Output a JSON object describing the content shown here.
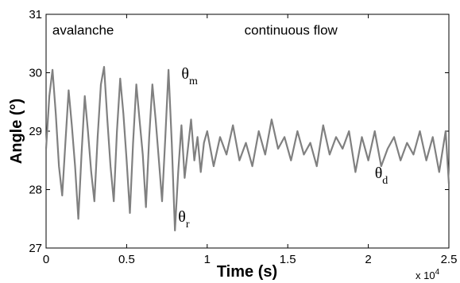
{
  "chart_data": {
    "type": "line",
    "xlabel": "Time (s)",
    "ylabel": "Angle  (°)",
    "x_multiplier": "x 10",
    "x_multiplier_exp": "4",
    "xlim": [
      0,
      2.5
    ],
    "ylim": [
      27,
      31
    ],
    "xticks": [
      0,
      0.5,
      1,
      1.5,
      2,
      2.5
    ],
    "xtick_labels": [
      "0",
      "0.5",
      "1",
      "1.5",
      "2",
      "2.5"
    ],
    "yticks": [
      27,
      28,
      29,
      30,
      31
    ],
    "ytick_labels": [
      "27",
      "28",
      "29",
      "30",
      "31"
    ],
    "grid": false,
    "line_color": "#808080",
    "annotations": [
      {
        "text": "avalanche",
        "x": 0.23,
        "y": 30.65
      },
      {
        "text": "continuous flow",
        "x": 1.52,
        "y": 30.65
      }
    ],
    "symbol_labels": [
      {
        "symbol": "θ",
        "subscript": "m",
        "x": 0.84,
        "y": 29.9
      },
      {
        "symbol": "θ",
        "subscript": "r",
        "x": 0.82,
        "y": 27.45
      },
      {
        "symbol": "θ",
        "subscript": "d",
        "x": 2.04,
        "y": 28.2
      }
    ],
    "series": [
      {
        "x": [
          0,
          0.02,
          0.04,
          0.06,
          0.08,
          0.1,
          0.12,
          0.14,
          0.16,
          0.18,
          0.2,
          0.22,
          0.24,
          0.26,
          0.28,
          0.3,
          0.32,
          0.34,
          0.36,
          0.38,
          0.4,
          0.42,
          0.44,
          0.46,
          0.48,
          0.5,
          0.52,
          0.54,
          0.56,
          0.58,
          0.6,
          0.62,
          0.64,
          0.66,
          0.68,
          0.7,
          0.72,
          0.74,
          0.76,
          0.78,
          0.8,
          0.82,
          0.84,
          0.86,
          0.88,
          0.9,
          0.92,
          0.94,
          0.96,
          0.98,
          1.0,
          1.04,
          1.08,
          1.12,
          1.16,
          1.2,
          1.24,
          1.28,
          1.32,
          1.36,
          1.4,
          1.44,
          1.48,
          1.52,
          1.56,
          1.6,
          1.64,
          1.68,
          1.72,
          1.76,
          1.8,
          1.84,
          1.88,
          1.92,
          1.96,
          2.0,
          2.04,
          2.08,
          2.12,
          2.16,
          2.2,
          2.24,
          2.28,
          2.32,
          2.36,
          2.4,
          2.44,
          2.48,
          2.5
        ],
        "y": [
          28.7,
          29.6,
          30.05,
          29.3,
          28.4,
          27.9,
          28.8,
          29.7,
          29.1,
          28.4,
          27.5,
          28.6,
          29.6,
          29.0,
          28.3,
          27.8,
          28.9,
          29.8,
          30.1,
          29.2,
          28.4,
          27.8,
          29.0,
          29.9,
          29.3,
          28.5,
          27.6,
          28.8,
          29.8,
          29.2,
          28.6,
          27.7,
          28.9,
          29.8,
          29.2,
          28.5,
          27.8,
          28.9,
          30.05,
          28.8,
          27.3,
          28.3,
          29.1,
          28.2,
          28.7,
          29.2,
          28.5,
          28.9,
          28.3,
          28.8,
          29.0,
          28.4,
          28.9,
          28.6,
          29.1,
          28.5,
          28.8,
          28.4,
          29.0,
          28.6,
          29.2,
          28.7,
          28.9,
          28.5,
          29.0,
          28.6,
          28.8,
          28.4,
          29.1,
          28.6,
          28.9,
          28.7,
          29.0,
          28.3,
          28.9,
          28.5,
          29.0,
          28.4,
          28.7,
          28.9,
          28.5,
          28.8,
          28.6,
          29.0,
          28.5,
          28.9,
          28.3,
          29.0,
          28.1
        ]
      }
    ]
  }
}
